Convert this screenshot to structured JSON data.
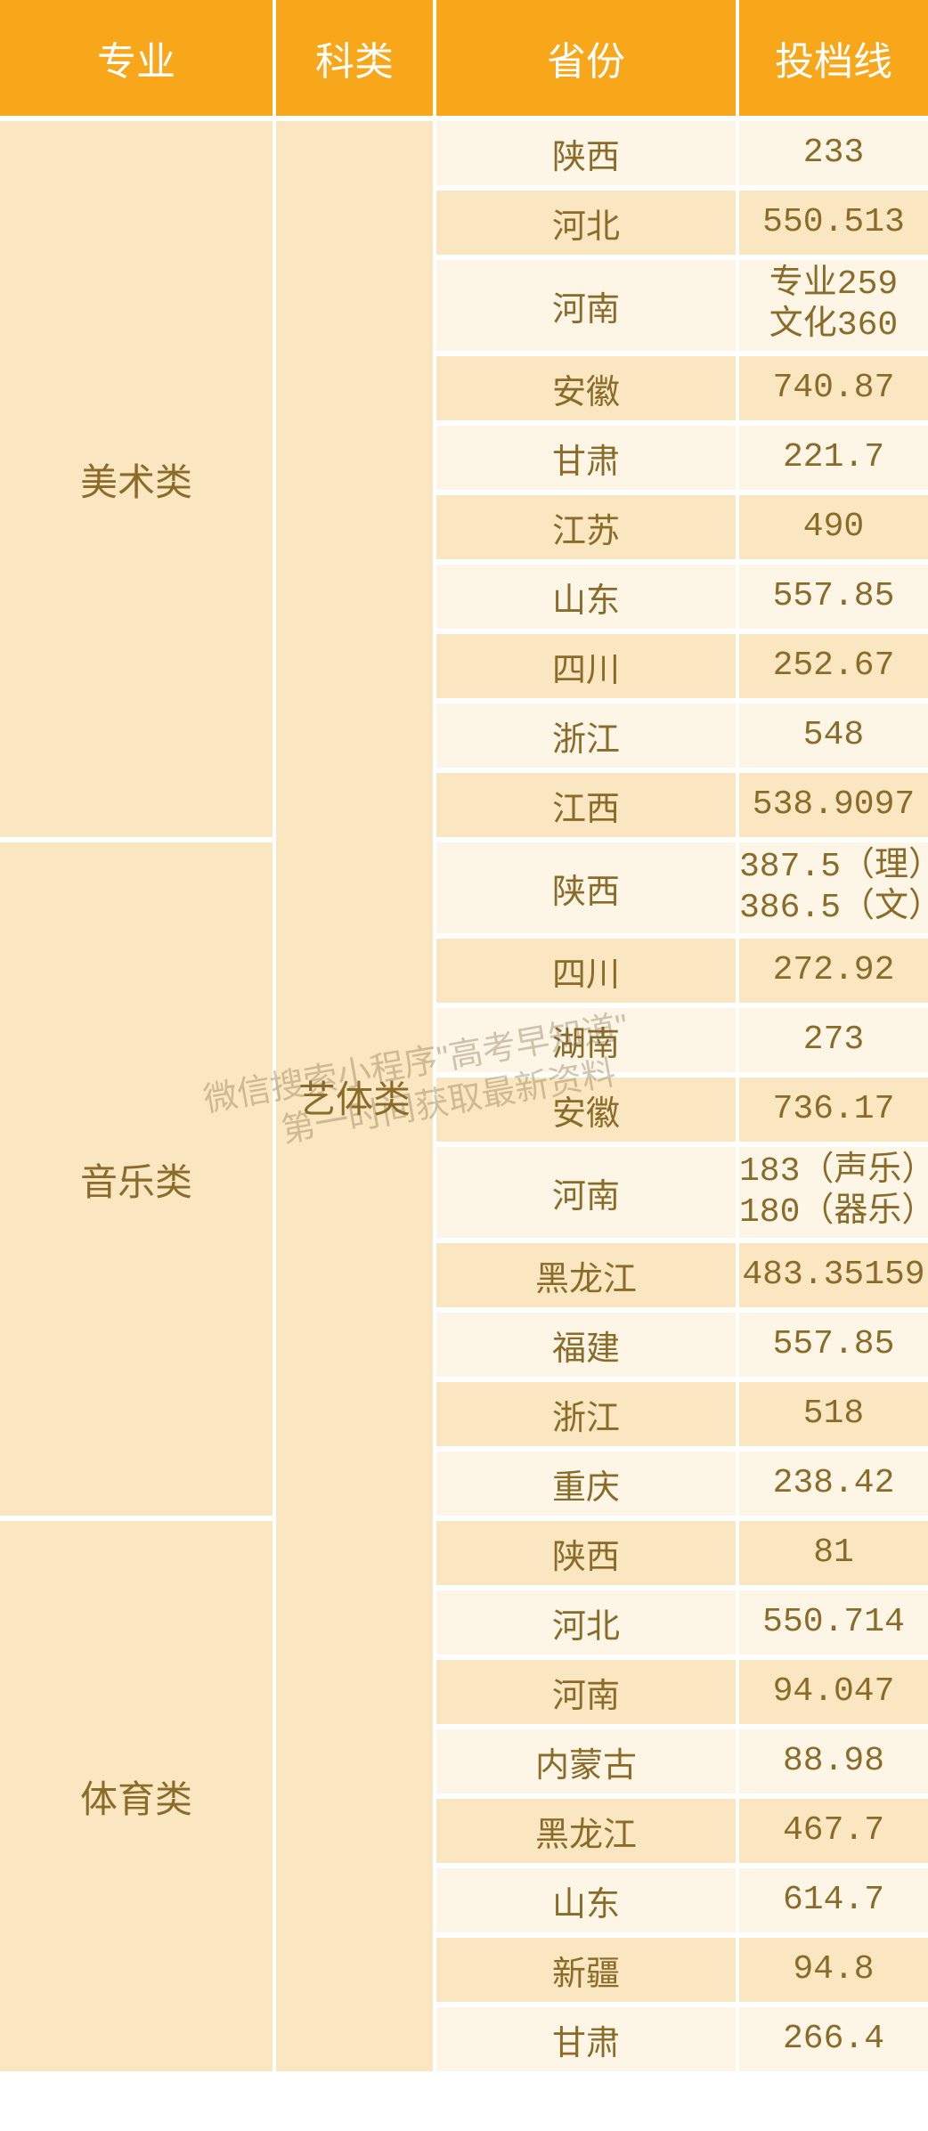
{
  "header": {
    "major": "专业",
    "category": "科类",
    "province": "省份",
    "score": "投档线"
  },
  "category_label": "艺体类",
  "colors": {
    "header_bg": "#f8a61a",
    "header_text": "#ffffff",
    "cell_text": "#8b6b28",
    "row_light": "#fdf5e6",
    "row_dark": "#fae6c0",
    "border": "#ffffff"
  },
  "watermark": {
    "line1": "微信搜索小程序\"高考早知道\"",
    "line2": "第一时间获取最新资料"
  },
  "groups": [
    {
      "major": "美术类",
      "rows": [
        {
          "province": "陕西",
          "score": "233",
          "tall": false
        },
        {
          "province": "河北",
          "score": "550.513",
          "tall": false
        },
        {
          "province": "河南",
          "score": "专业259\n文化360",
          "tall": true
        },
        {
          "province": "安徽",
          "score": "740.87",
          "tall": false
        },
        {
          "province": "甘肃",
          "score": "221.7",
          "tall": false
        },
        {
          "province": "江苏",
          "score": "490",
          "tall": false
        },
        {
          "province": "山东",
          "score": "557.85",
          "tall": false
        },
        {
          "province": "四川",
          "score": "252.67",
          "tall": false
        },
        {
          "province": "浙江",
          "score": "548",
          "tall": false
        },
        {
          "province": "江西",
          "score": "538.9097",
          "tall": false
        }
      ]
    },
    {
      "major": "音乐类",
      "rows": [
        {
          "province": "陕西",
          "score": "387.5（理）\n386.5（文）",
          "tall": true
        },
        {
          "province": "四川",
          "score": "272.92",
          "tall": false
        },
        {
          "province": "湖南",
          "score": "273",
          "tall": false
        },
        {
          "province": "安徽",
          "score": "736.17",
          "tall": false
        },
        {
          "province": "河南",
          "score": "183（声乐）\n180（器乐）",
          "tall": true
        },
        {
          "province": "黑龙江",
          "score": "483.35159",
          "tall": false
        },
        {
          "province": "福建",
          "score": "557.85",
          "tall": false
        },
        {
          "province": "浙江",
          "score": "518",
          "tall": false
        },
        {
          "province": "重庆",
          "score": "238.42",
          "tall": false
        }
      ]
    },
    {
      "major": "体育类",
      "rows": [
        {
          "province": "陕西",
          "score": "81",
          "tall": false
        },
        {
          "province": "河北",
          "score": "550.714",
          "tall": false
        },
        {
          "province": "河南",
          "score": "94.047",
          "tall": false
        },
        {
          "province": "内蒙古",
          "score": "88.98",
          "tall": false
        },
        {
          "province": "黑龙江",
          "score": "467.7",
          "tall": false
        },
        {
          "province": "山东",
          "score": "614.7",
          "tall": false
        },
        {
          "province": "新疆",
          "score": "94.8",
          "tall": false
        },
        {
          "province": "甘肃",
          "score": "266.4",
          "tall": false
        }
      ]
    }
  ]
}
